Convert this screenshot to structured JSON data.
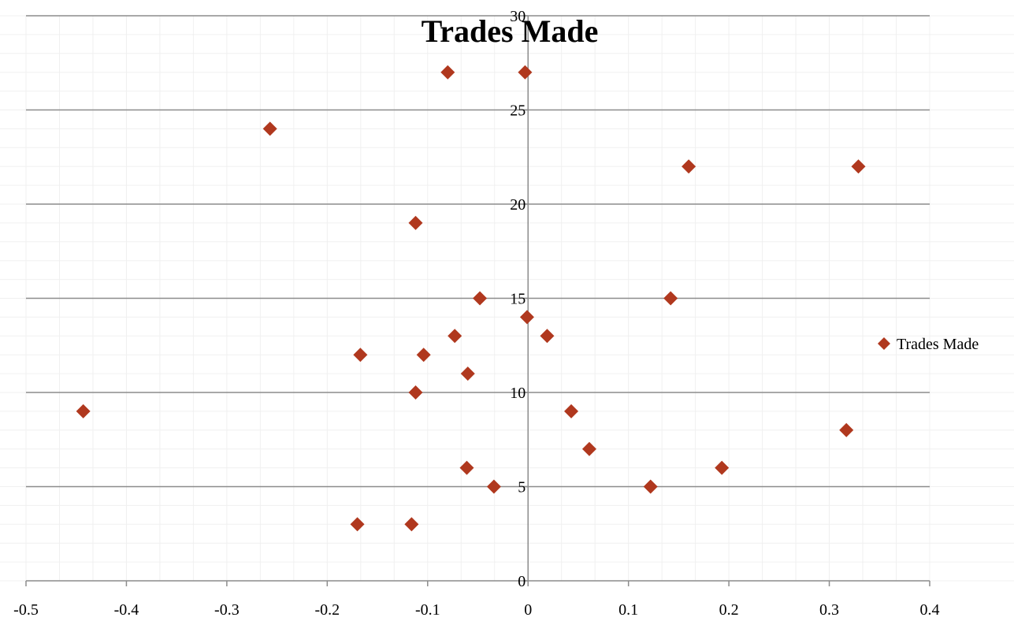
{
  "chart_data": {
    "type": "scatter",
    "title": "Trades Made",
    "xlabel": "",
    "ylabel": "",
    "xlim": [
      -0.5,
      0.4
    ],
    "ylim": [
      0,
      30
    ],
    "x_ticks": [
      "-0.5",
      "-0.4",
      "-0.3",
      "-0.2",
      "-0.1",
      "0",
      "0.1",
      "0.2",
      "0.3",
      "0.4"
    ],
    "y_ticks": [
      "0",
      "5",
      "10",
      "15",
      "20",
      "25",
      "30"
    ],
    "grid": "major horizontal and faint minor grid",
    "legend_position": "right",
    "series": [
      {
        "name": "Trades Made",
        "color": "#B0381E",
        "marker": "diamond",
        "points": [
          {
            "x": -0.08,
            "y": 27
          },
          {
            "x": -0.003,
            "y": 27
          },
          {
            "x": -0.257,
            "y": 24
          },
          {
            "x": 0.16,
            "y": 22
          },
          {
            "x": 0.329,
            "y": 22
          },
          {
            "x": -0.112,
            "y": 19
          },
          {
            "x": -0.048,
            "y": 15
          },
          {
            "x": 0.142,
            "y": 15
          },
          {
            "x": -0.001,
            "y": 14
          },
          {
            "x": -0.073,
            "y": 13
          },
          {
            "x": 0.019,
            "y": 13
          },
          {
            "x": -0.167,
            "y": 12
          },
          {
            "x": -0.104,
            "y": 12
          },
          {
            "x": -0.06,
            "y": 11
          },
          {
            "x": -0.112,
            "y": 10
          },
          {
            "x": -0.443,
            "y": 9
          },
          {
            "x": 0.043,
            "y": 9
          },
          {
            "x": 0.317,
            "y": 8
          },
          {
            "x": 0.061,
            "y": 7
          },
          {
            "x": -0.061,
            "y": 6
          },
          {
            "x": 0.193,
            "y": 6
          },
          {
            "x": -0.034,
            "y": 5
          },
          {
            "x": 0.122,
            "y": 5
          },
          {
            "x": -0.17,
            "y": 3
          },
          {
            "x": -0.116,
            "y": 3
          }
        ]
      }
    ]
  }
}
